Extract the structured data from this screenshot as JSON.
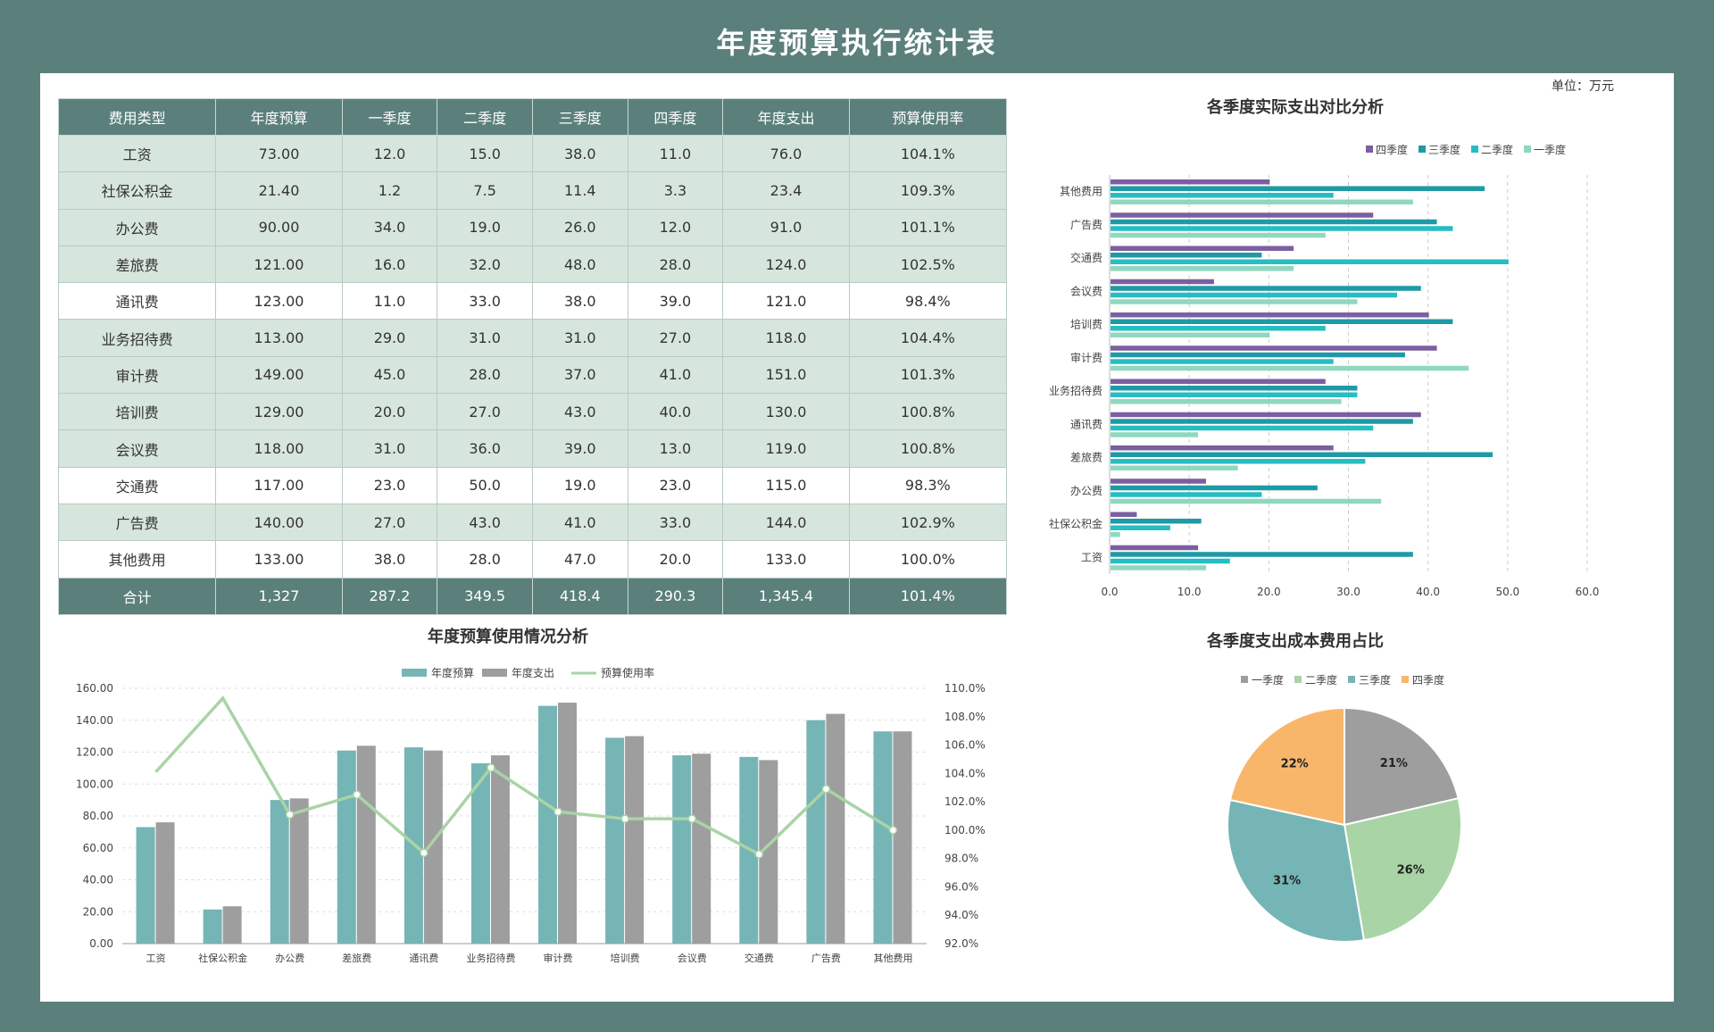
{
  "title": "年度预算执行统计表",
  "unit": "单位：万元",
  "table": {
    "headers": [
      "费用类型",
      "年度预算",
      "一季度",
      "二季度",
      "三季度",
      "四季度",
      "年度支出",
      "预算使用率"
    ],
    "rows": [
      [
        "工资",
        "73.00",
        "12.0",
        "15.0",
        "38.0",
        "11.0",
        "76.0",
        "104.1%"
      ],
      [
        "社保公积金",
        "21.40",
        "1.2",
        "7.5",
        "11.4",
        "3.3",
        "23.4",
        "109.3%"
      ],
      [
        "办公费",
        "90.00",
        "34.0",
        "19.0",
        "26.0",
        "12.0",
        "91.0",
        "101.1%"
      ],
      [
        "差旅费",
        "121.00",
        "16.0",
        "32.0",
        "48.0",
        "28.0",
        "124.0",
        "102.5%"
      ],
      [
        "通讯费",
        "123.00",
        "11.0",
        "33.0",
        "38.0",
        "39.0",
        "121.0",
        "98.4%"
      ],
      [
        "业务招待费",
        "113.00",
        "29.0",
        "31.0",
        "31.0",
        "27.0",
        "118.0",
        "104.4%"
      ],
      [
        "审计费",
        "149.00",
        "45.0",
        "28.0",
        "37.0",
        "41.0",
        "151.0",
        "101.3%"
      ],
      [
        "培训费",
        "129.00",
        "20.0",
        "27.0",
        "43.0",
        "40.0",
        "130.0",
        "100.8%"
      ],
      [
        "会议费",
        "118.00",
        "31.0",
        "36.0",
        "39.0",
        "13.0",
        "119.0",
        "100.8%"
      ],
      [
        "交通费",
        "117.00",
        "23.0",
        "50.0",
        "19.0",
        "23.0",
        "115.0",
        "98.3%"
      ],
      [
        "广告费",
        "140.00",
        "27.0",
        "43.0",
        "41.0",
        "33.0",
        "144.0",
        "102.9%"
      ],
      [
        "其他费用",
        "133.00",
        "38.0",
        "28.0",
        "47.0",
        "20.0",
        "133.0",
        "100.0%"
      ]
    ],
    "total": [
      "合计",
      "1,327",
      "287.2",
      "349.5",
      "418.4",
      "290.3",
      "1,345.4",
      "101.4%"
    ]
  },
  "chart_data": [
    {
      "type": "bar",
      "orientation": "horizontal",
      "title": "各季度实际支出对比分析",
      "categories": [
        "工资",
        "社保公积金",
        "办公费",
        "差旅费",
        "通讯费",
        "业务招待费",
        "审计费",
        "培训费",
        "会议费",
        "交通费",
        "广告费",
        "其他费用"
      ],
      "series": [
        {
          "name": "四季度",
          "color": "#7b5fa0",
          "values": [
            11,
            3.3,
            12,
            28,
            39,
            27,
            41,
            40,
            13,
            23,
            33,
            20
          ]
        },
        {
          "name": "三季度",
          "color": "#1e9aa6",
          "values": [
            38,
            11.4,
            26,
            48,
            38,
            31,
            37,
            43,
            39,
            19,
            41,
            47
          ]
        },
        {
          "name": "二季度",
          "color": "#26bdc3",
          "values": [
            15,
            7.5,
            19,
            32,
            33,
            31,
            28,
            27,
            36,
            50,
            43,
            28
          ]
        },
        {
          "name": "一季度",
          "color": "#8fd8bf",
          "values": [
            12,
            1.2,
            34,
            16,
            11,
            29,
            45,
            20,
            31,
            23,
            27,
            38
          ]
        }
      ],
      "xlim": [
        0,
        60
      ],
      "xticks": [
        "0.0",
        "10.0",
        "20.0",
        "30.0",
        "40.0",
        "50.0",
        "60.0"
      ],
      "grid": true,
      "legend": "top-right"
    },
    {
      "type": "bar+line",
      "title": "年度预算使用情况分析",
      "categories": [
        "工资",
        "社保公积金",
        "办公费",
        "差旅费",
        "通讯费",
        "业务招待费",
        "审计费",
        "培训费",
        "会议费",
        "交通费",
        "广告费",
        "其他费用"
      ],
      "series": [
        {
          "name": "年度预算",
          "color": "#76b5b5",
          "axis": "left",
          "values": [
            73,
            21.4,
            90,
            121,
            123,
            113,
            149,
            129,
            118,
            117,
            140,
            133
          ]
        },
        {
          "name": "年度支出",
          "color": "#9e9e9e",
          "axis": "left",
          "values": [
            76,
            23.4,
            91,
            124,
            121,
            118,
            151,
            130,
            119,
            115,
            144,
            133
          ]
        },
        {
          "name": "预算使用率",
          "color": "#a9d4a6",
          "axis": "right",
          "values": [
            104.1,
            109.3,
            101.1,
            102.5,
            98.4,
            104.4,
            101.3,
            100.8,
            100.8,
            98.3,
            102.9,
            100.0
          ]
        }
      ],
      "ylim": [
        0,
        160
      ],
      "yticks": [
        "0.00",
        "20.00",
        "40.00",
        "60.00",
        "80.00",
        "100.00",
        "120.00",
        "140.00",
        "160.00"
      ],
      "y2lim": [
        92,
        110
      ],
      "y2ticks": [
        "92.0%",
        "94.0%",
        "96.0%",
        "98.0%",
        "100.0%",
        "102.0%",
        "104.0%",
        "106.0%",
        "108.0%",
        "110.0%"
      ],
      "grid": true,
      "legend": "top"
    },
    {
      "type": "pie",
      "title": "各季度支出成本费用占比",
      "labels": [
        "一季度",
        "二季度",
        "三季度",
        "四季度"
      ],
      "values": [
        287.2,
        349.5,
        418.4,
        290.3
      ],
      "data_labels": [
        "21%",
        "26%",
        "31%",
        "22%"
      ],
      "colors": [
        "#9e9e9e",
        "#a9d4a6",
        "#76b5b5",
        "#f8b66b"
      ],
      "legend": "top"
    }
  ]
}
